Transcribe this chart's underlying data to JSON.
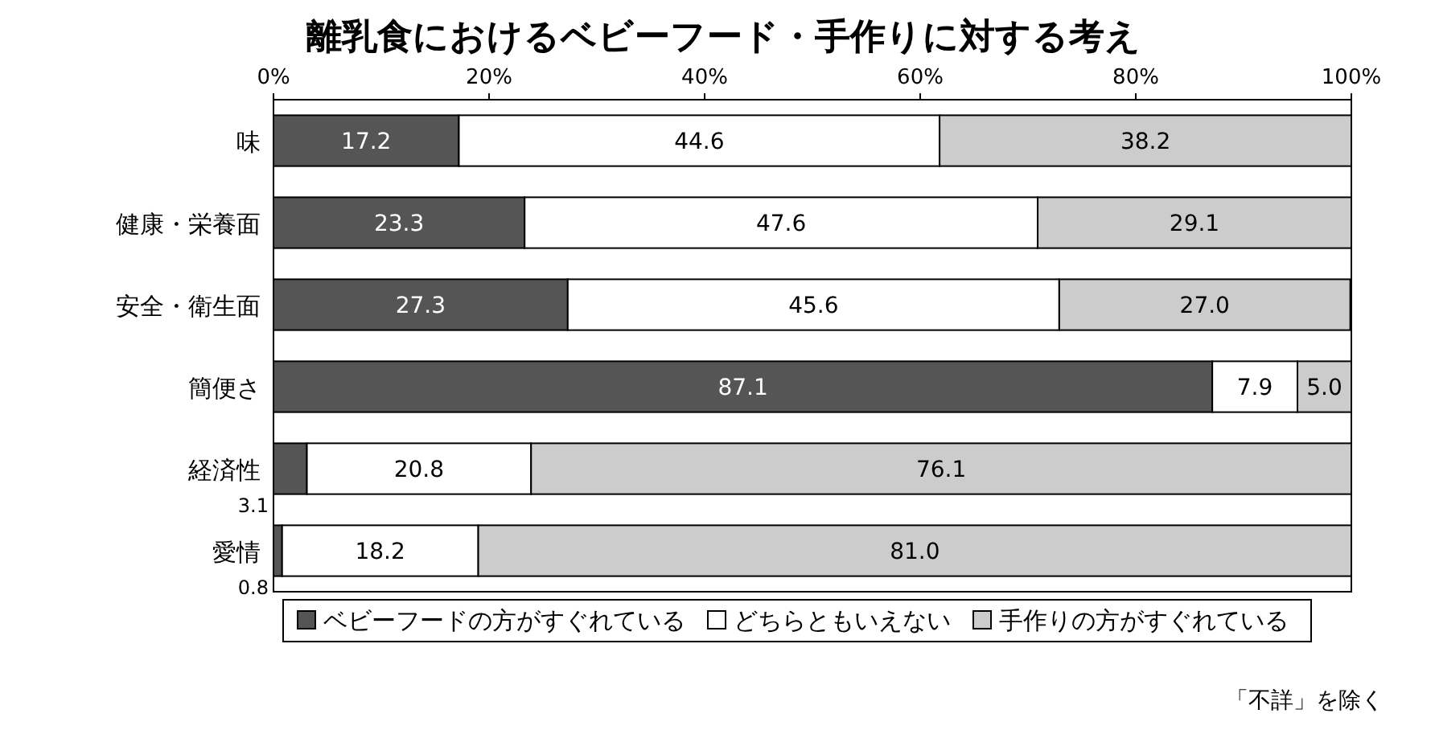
{
  "chart_data": {
    "type": "bar",
    "orientation": "horizontal",
    "stacked": true,
    "title": "離乳食におけるベビーフード・手作りに対する考え",
    "categories": [
      "味",
      "健康・栄養面",
      "安全・衛生面",
      "簡便さ",
      "経済性",
      "愛情"
    ],
    "series": [
      {
        "name": "ベビーフードの方がすぐれている",
        "color": "#555555",
        "values": [
          17.2,
          23.3,
          27.3,
          87.1,
          3.1,
          0.8
        ],
        "value_labels": [
          "17.2",
          "23.3",
          "27.3",
          "87.1",
          "3.1",
          "0.8"
        ]
      },
      {
        "name": "どちらともいえない",
        "color": "#ffffff",
        "values": [
          44.6,
          47.6,
          45.6,
          7.9,
          20.8,
          18.2
        ],
        "value_labels": [
          "44.6",
          "47.6",
          "45.6",
          "7.9",
          "20.8",
          "18.2"
        ]
      },
      {
        "name": "手作りの方がすぐれている",
        "color": "#cccccc",
        "values": [
          38.2,
          29.1,
          27.0,
          5.0,
          76.1,
          81.0
        ],
        "value_labels": [
          "38.2",
          "29.1",
          "27.0",
          "5.0",
          "76.1",
          "81.0"
        ]
      }
    ],
    "xlim": [
      0,
      100
    ],
    "xticks": [
      {
        "value": 0,
        "label": "0%"
      },
      {
        "value": 20,
        "label": "20%"
      },
      {
        "value": 40,
        "label": "40%"
      },
      {
        "value": 60,
        "label": "60%"
      },
      {
        "value": 80,
        "label": "80%"
      },
      {
        "value": 100,
        "label": "100%"
      }
    ],
    "legend": "bottom",
    "annotations": [
      "「不詳」を除く"
    ]
  }
}
